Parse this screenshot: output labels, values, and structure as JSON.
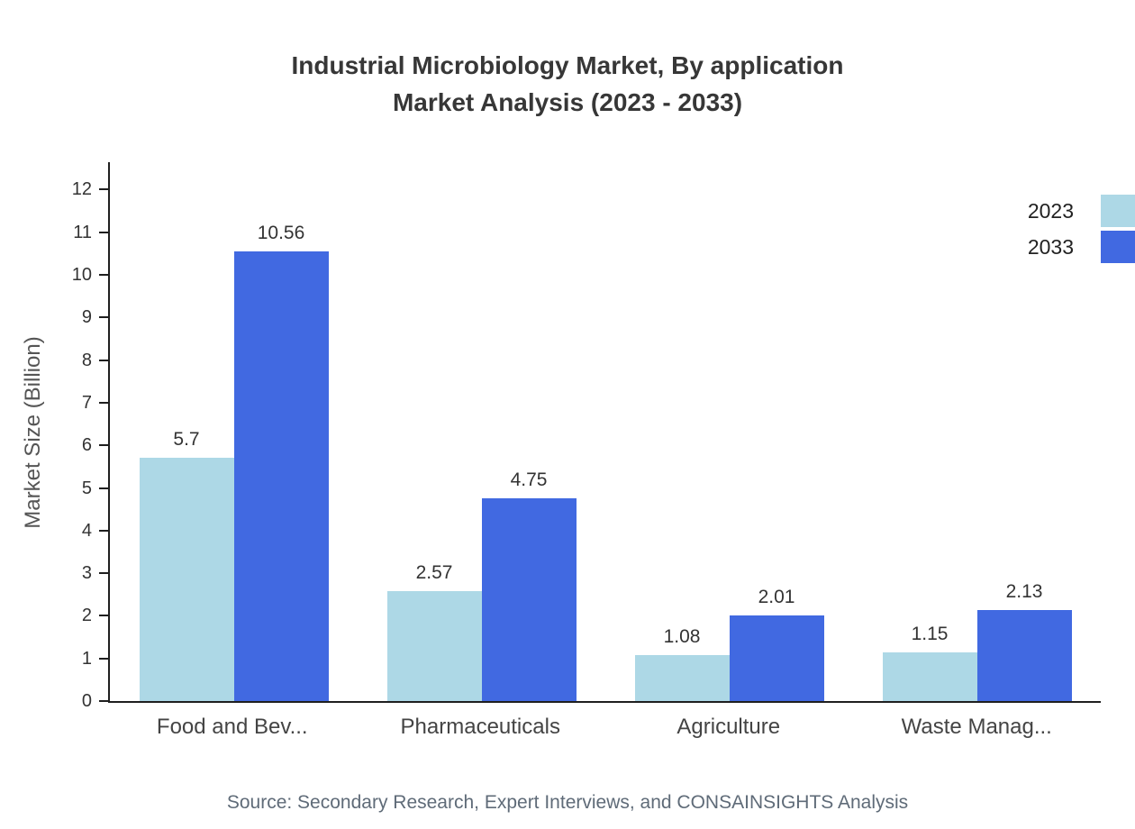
{
  "header": {
    "title_line1": "Industrial Microbiology Market, By application",
    "title_line2": "Market Analysis (2023 - 2033)"
  },
  "footer": {
    "source": "Source: Secondary Research, Expert Interviews, and CONSAINSIGHTS Analysis"
  },
  "chart_data": {
    "type": "bar",
    "title": "Industrial Microbiology Market, By application Market Analysis (2023 - 2033)",
    "xlabel": "",
    "ylabel": "Market Size (Billion)",
    "categories": [
      "Food and Bev...",
      "Pharmaceuticals",
      "Agriculture",
      "Waste Manag..."
    ],
    "series": [
      {
        "name": "2023",
        "color": "#ADD8E6",
        "values": [
          5.7,
          2.57,
          1.08,
          1.15
        ]
      },
      {
        "name": "2033",
        "color": "#4169E1",
        "values": [
          10.56,
          4.75,
          2.01,
          2.13
        ]
      }
    ],
    "ylim": [
      0,
      12
    ],
    "yticks": [
      0,
      1,
      2,
      3,
      4,
      5,
      6,
      7,
      8,
      9,
      10,
      11,
      12
    ],
    "grid": false,
    "legend_position": "top-right",
    "bar_value_labels": true
  }
}
